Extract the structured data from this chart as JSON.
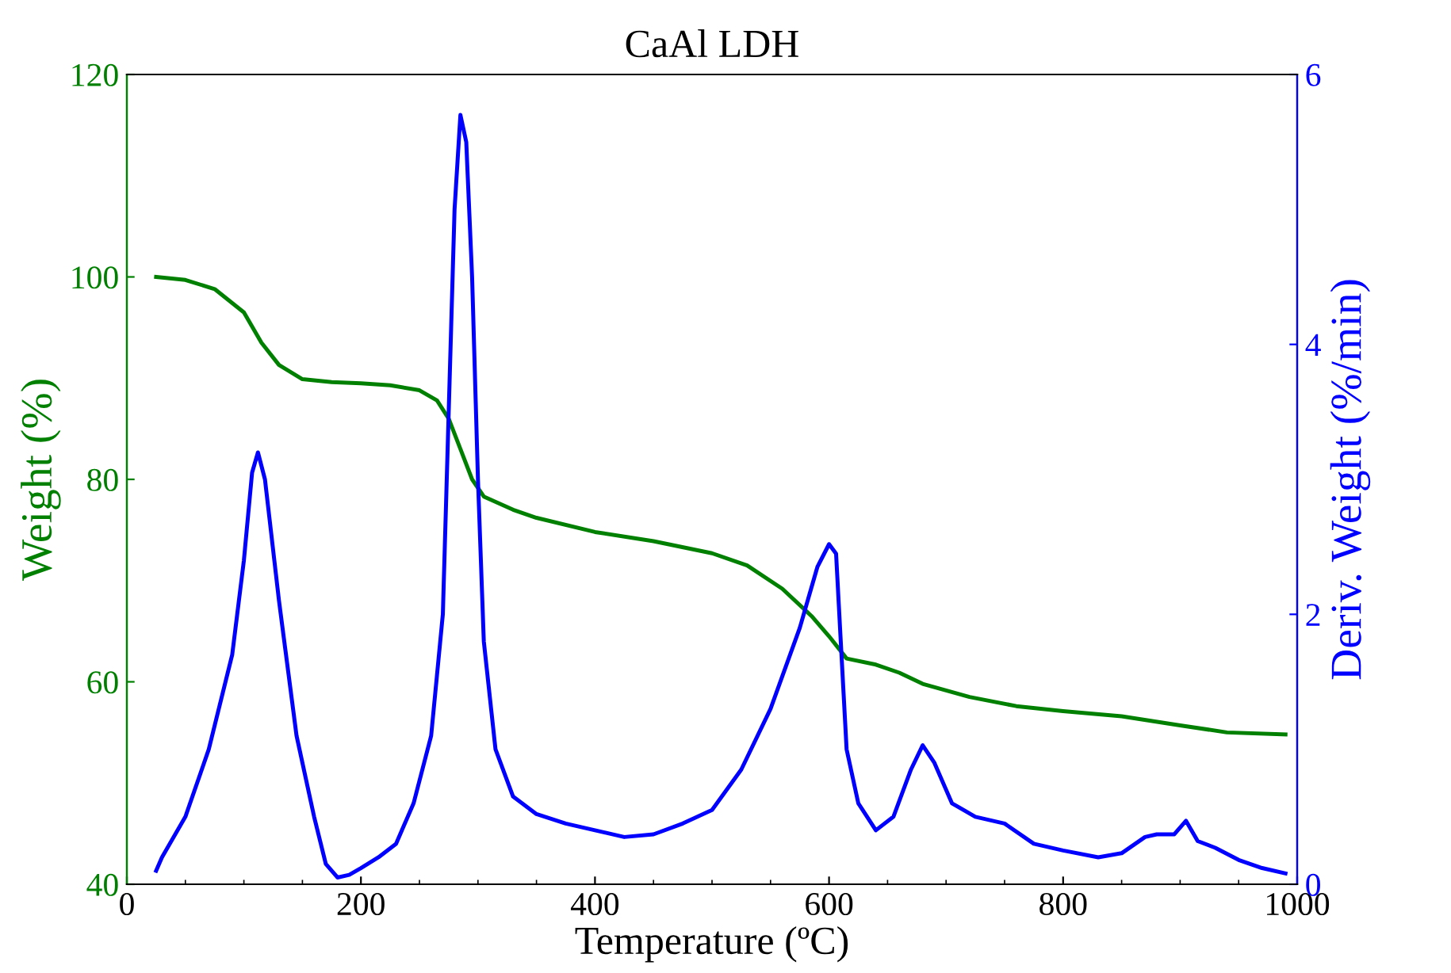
{
  "chart_data": {
    "type": "line",
    "title": "CaAl LDH",
    "xlabel": "Temperature (ºC)",
    "ylabel": "Weight (%)",
    "y2label": "Deriv. Weight (%/min)",
    "xlim": [
      0,
      1000
    ],
    "xticks": [
      0,
      200,
      400,
      600,
      800,
      1000
    ],
    "ylim": [
      40,
      120
    ],
    "yticks": [
      40,
      60,
      80,
      100,
      120
    ],
    "y2lim": [
      0,
      6
    ],
    "y2ticks": [
      0,
      2,
      4,
      6
    ],
    "grid": false,
    "marker": "none",
    "line_style": "solid",
    "series": [
      {
        "color": "#008000",
        "x": [
          25,
          50,
          75,
          100,
          115,
          130,
          150,
          175,
          200,
          225,
          250,
          265,
          275,
          285,
          295,
          305,
          330,
          350,
          400,
          450,
          500,
          530,
          560,
          585,
          600,
          615,
          640,
          660,
          680,
          720,
          760,
          800,
          850,
          900,
          940,
          990
        ],
        "values": [
          100,
          99.7,
          98.8,
          96.5,
          93.5,
          91.3,
          89.9,
          89.6,
          89.5,
          89.3,
          88.8,
          87.8,
          86,
          83,
          80,
          78.3,
          77,
          76.2,
          74.8,
          73.9,
          72.7,
          71.5,
          69.2,
          66.5,
          64.5,
          62.3,
          61.7,
          60.9,
          59.8,
          58.5,
          57.6,
          57.1,
          56.6,
          55.7,
          55,
          54.8
        ]
      },
      {
        "color": "#0000ff",
        "axis": "y2",
        "x": [
          25,
          30,
          50,
          70,
          90,
          100,
          107,
          112,
          118,
          130,
          145,
          160,
          170,
          180,
          190,
          200,
          215,
          230,
          245,
          260,
          270,
          275,
          280,
          285,
          290,
          295,
          300,
          305,
          315,
          330,
          350,
          375,
          400,
          425,
          450,
          475,
          500,
          525,
          550,
          575,
          590,
          600,
          606,
          610,
          615,
          625,
          640,
          655,
          670,
          680,
          690,
          705,
          725,
          750,
          775,
          800,
          830,
          850,
          870,
          880,
          895,
          905,
          915,
          930,
          950,
          970,
          990
        ],
        "values": [
          0.1,
          0.2,
          0.5,
          1.0,
          1.7,
          2.4,
          3.05,
          3.2,
          3.0,
          2.1,
          1.1,
          0.5,
          0.15,
          0.05,
          0.07,
          0.12,
          0.2,
          0.3,
          0.6,
          1.1,
          2.0,
          3.5,
          5.0,
          5.7,
          5.5,
          4.5,
          3.0,
          1.8,
          1.0,
          0.65,
          0.52,
          0.45,
          0.4,
          0.35,
          0.37,
          0.45,
          0.55,
          0.85,
          1.3,
          1.9,
          2.35,
          2.52,
          2.45,
          1.8,
          1.0,
          0.6,
          0.4,
          0.5,
          0.85,
          1.03,
          0.9,
          0.6,
          0.5,
          0.45,
          0.3,
          0.25,
          0.2,
          0.23,
          0.35,
          0.37,
          0.37,
          0.47,
          0.32,
          0.27,
          0.18,
          0.12,
          0.08
        ]
      }
    ]
  }
}
